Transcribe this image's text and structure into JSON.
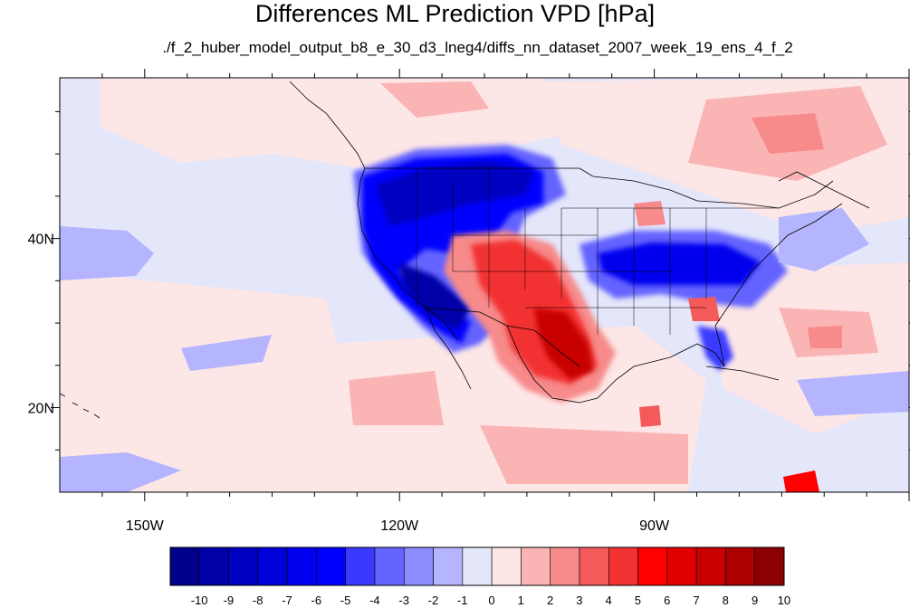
{
  "title": "Differences ML Prediction VPD [hPa]",
  "subtitle": "./f_2_huber_model_output_b8_e_30_d3_lneg4/diffs_nn_dataset_2007_week_19_ens_4_f_2",
  "map": {
    "lon_range": [
      -160,
      -60
    ],
    "lat_range": [
      10,
      59
    ],
    "lon_ticks": [
      {
        "value": -150,
        "label": "150W"
      },
      {
        "value": -120,
        "label": "120W"
      },
      {
        "value": -90,
        "label": "90W"
      }
    ],
    "lat_ticks": [
      {
        "value": 40,
        "label": "40N"
      },
      {
        "value": 20,
        "label": "20N"
      }
    ]
  },
  "colorbar": {
    "labels": [
      "-10",
      "-9",
      "-8",
      "-7",
      "-6",
      "-5",
      "-4",
      "-3",
      "-2",
      "-1",
      "0",
      "1",
      "2",
      "3",
      "4",
      "5",
      "6",
      "7",
      "8",
      "9",
      "10"
    ],
    "colors": [
      "#00008b",
      "#0000a8",
      "#0000c0",
      "#0000d8",
      "#0000ee",
      "#0000ff",
      "#3a3aff",
      "#6464ff",
      "#8c8cff",
      "#b4b4ff",
      "#e4e6fa",
      "#fde6e6",
      "#fbb4b4",
      "#f78a8a",
      "#f45a5a",
      "#f23232",
      "#ff0000",
      "#e00000",
      "#c80000",
      "#aa0000",
      "#8b0000"
    ]
  }
}
